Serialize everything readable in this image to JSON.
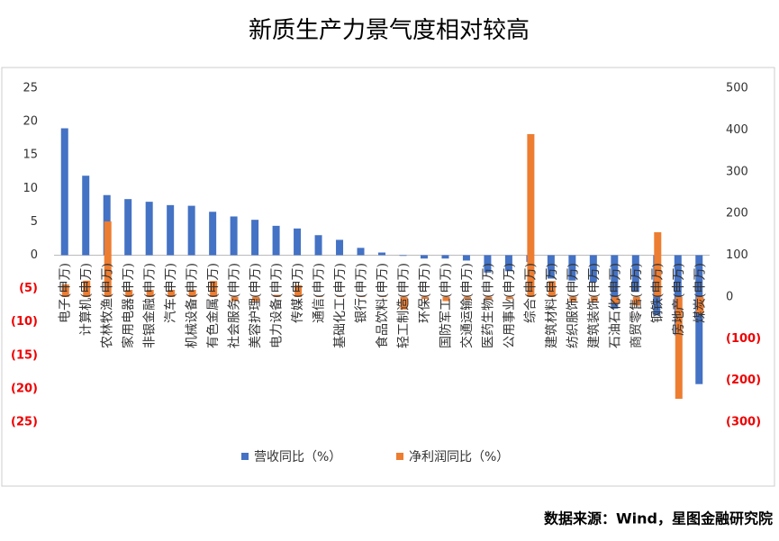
{
  "chart_data": {
    "type": "bar",
    "title": "新质生产力景气度相对较高",
    "source": "数据来源：Wind，星图金融研究院",
    "categories": [
      "电子(申万)",
      "计算机(申万)",
      "农林牧渔(申万)",
      "家用电器(申万)",
      "非银金融(申万)",
      "汽车(申万)",
      "机械设备(申万)",
      "有色金属(申万)",
      "社会服务(申万)",
      "美容护理(申万)",
      "电力设备(申万)",
      "传媒(申万)",
      "通信(申万)",
      "基础化工(申万)",
      "银行(申万)",
      "食品饮料(申万)",
      "轻工制造(申万)",
      "环保(申万)",
      "国防军工(申万)",
      "交通运输(申万)",
      "医药生物(申万)",
      "公用事业(申万)",
      "综合(申万)",
      "建筑材料(申万)",
      "纺织服饰(申万)",
      "建筑装饰(申万)",
      "石油石化(申万)",
      "商贸零售(申万)",
      "钢铁(申万)",
      "房地产(申万)",
      "煤炭(申万)"
    ],
    "series": [
      {
        "name": "营收同比（%）",
        "color": "#4472c4",
        "axis": "y",
        "values": [
          19.0,
          11.9,
          9.0,
          8.4,
          8.0,
          7.5,
          7.4,
          6.5,
          5.8,
          5.3,
          4.4,
          4.0,
          3.0,
          2.3,
          1.1,
          0.4,
          -0.1,
          -0.5,
          -0.5,
          -0.8,
          -2.6,
          -2.4,
          -1.0,
          -3.5,
          -3.8,
          -4.0,
          -8.0,
          -5.5,
          -9.0,
          -12.0,
          -19.3
        ]
      },
      {
        "name": "净利润同比（%）",
        "color": "#ed7d31",
        "axis": "y2",
        "values": [
          30,
          39,
          181,
          17,
          17,
          17,
          17,
          38,
          -10,
          -10,
          5,
          28,
          3,
          3,
          2,
          2,
          -30,
          -5,
          -10,
          -5,
          -5,
          -5,
          390,
          38,
          -10,
          -10,
          -15,
          -20,
          155,
          -244,
          -40
        ]
      }
    ],
    "ylim": [
      -25,
      25
    ],
    "yticks": [
      {
        "value": -25,
        "label": "(25)"
      },
      {
        "value": -20,
        "label": "(20)"
      },
      {
        "value": -15,
        "label": "(15)"
      },
      {
        "value": -10,
        "label": "(10)"
      },
      {
        "value": -5,
        "label": "(5)"
      },
      0,
      5,
      10,
      15,
      20,
      25
    ],
    "y2lim": [
      -300,
      500
    ],
    "y2ticks": [
      {
        "value": -300,
        "label": "(300)"
      },
      {
        "value": -200,
        "label": "(200)"
      },
      {
        "value": -100,
        "label": "(100)"
      },
      0,
      100,
      200,
      300,
      400,
      500
    ],
    "legend": "bottom"
  }
}
